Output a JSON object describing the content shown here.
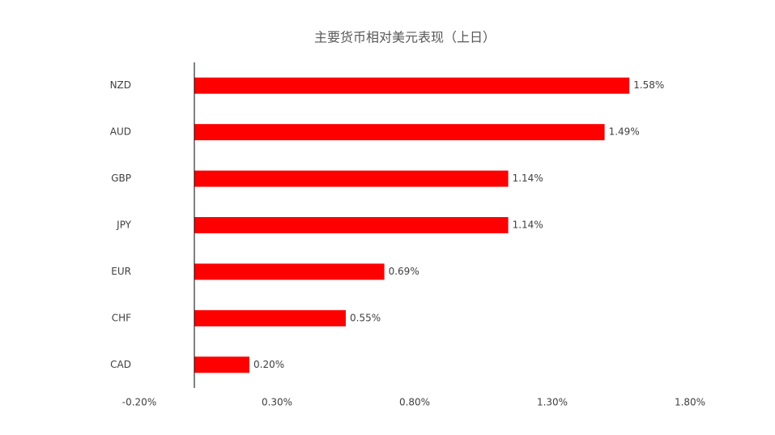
{
  "chart_data": {
    "type": "bar",
    "title": "主要货币相对美元表现（上日）",
    "categories": [
      "NZD",
      "AUD",
      "GBP",
      "JPY",
      "EUR",
      "CHF",
      "CAD"
    ],
    "values": [
      1.58,
      1.49,
      1.14,
      1.14,
      0.69,
      0.55,
      0.2
    ],
    "value_labels": [
      "1.58%",
      "1.49%",
      "1.14%",
      "1.14%",
      "0.69%",
      "0.55%",
      "0.20%"
    ],
    "color": "#ff0000",
    "xlim": [
      -0.2,
      1.8
    ],
    "xticks": [
      {
        "value": -0.2,
        "label": "-0.20%"
      },
      {
        "value": 0.3,
        "label": "0.30%"
      },
      {
        "value": 0.8,
        "label": "0.80%"
      },
      {
        "value": 1.3,
        "label": "1.30%"
      },
      {
        "value": 1.8,
        "label": "1.80%"
      }
    ],
    "grid": false
  }
}
